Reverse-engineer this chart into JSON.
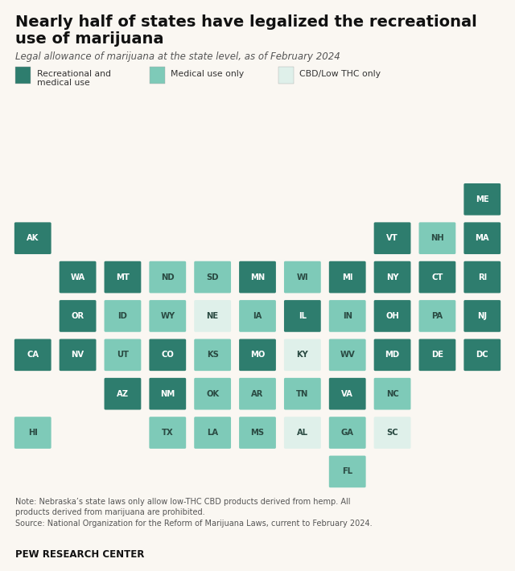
{
  "title_line1": "Nearly half of states have legalized the recreational",
  "title_line2": "use of marijuana",
  "subtitle": "Legal allowance of marijuana at the state level, as of February 2024",
  "legend": [
    {
      "label": "Recreational and\nmedical use",
      "color": "#2e7d6e"
    },
    {
      "label": "Medical use only",
      "color": "#7ecab8"
    },
    {
      "label": "CBD/Low THC only",
      "color": "#dff0ea"
    }
  ],
  "note": "Note: Nebraska’s state laws only allow low-THC CBD products derived from hemp. All\nproducts derived from marijuana are prohibited.\nSource: National Organization for the Reform of Marijuana Laws, current to February 2024.",
  "footer": "PEW RESEARCH CENTER",
  "colors": {
    "recreational": "#2e7d6e",
    "medical": "#7ecab8",
    "cbd": "#dff0ea",
    "none": "#ffffff"
  },
  "states": [
    {
      "abbr": "ME",
      "col": 10,
      "row": 0,
      "type": "recreational"
    },
    {
      "abbr": "AK",
      "col": 0,
      "row": 1,
      "type": "recreational"
    },
    {
      "abbr": "VT",
      "col": 8,
      "row": 1,
      "type": "recreational"
    },
    {
      "abbr": "NH",
      "col": 9,
      "row": 1,
      "type": "medical"
    },
    {
      "abbr": "MA",
      "col": 10,
      "row": 1,
      "type": "recreational"
    },
    {
      "abbr": "WA",
      "col": 1,
      "row": 2,
      "type": "recreational"
    },
    {
      "abbr": "MT",
      "col": 2,
      "row": 2,
      "type": "recreational"
    },
    {
      "abbr": "ND",
      "col": 3,
      "row": 2,
      "type": "medical"
    },
    {
      "abbr": "SD",
      "col": 4,
      "row": 2,
      "type": "medical"
    },
    {
      "abbr": "MN",
      "col": 5,
      "row": 2,
      "type": "recreational"
    },
    {
      "abbr": "WI",
      "col": 6,
      "row": 2,
      "type": "medical"
    },
    {
      "abbr": "MI",
      "col": 7,
      "row": 2,
      "type": "recreational"
    },
    {
      "abbr": "NY",
      "col": 8,
      "row": 2,
      "type": "recreational"
    },
    {
      "abbr": "CT",
      "col": 9,
      "row": 2,
      "type": "recreational"
    },
    {
      "abbr": "RI",
      "col": 10,
      "row": 2,
      "type": "recreational"
    },
    {
      "abbr": "OR",
      "col": 1,
      "row": 3,
      "type": "recreational"
    },
    {
      "abbr": "ID",
      "col": 2,
      "row": 3,
      "type": "medical"
    },
    {
      "abbr": "WY",
      "col": 3,
      "row": 3,
      "type": "medical"
    },
    {
      "abbr": "NE",
      "col": 4,
      "row": 3,
      "type": "cbd"
    },
    {
      "abbr": "IA",
      "col": 5,
      "row": 3,
      "type": "medical"
    },
    {
      "abbr": "IL",
      "col": 6,
      "row": 3,
      "type": "recreational"
    },
    {
      "abbr": "IN",
      "col": 7,
      "row": 3,
      "type": "medical"
    },
    {
      "abbr": "OH",
      "col": 8,
      "row": 3,
      "type": "recreational"
    },
    {
      "abbr": "PA",
      "col": 9,
      "row": 3,
      "type": "medical"
    },
    {
      "abbr": "NJ",
      "col": 10,
      "row": 3,
      "type": "recreational"
    },
    {
      "abbr": "CA",
      "col": 0,
      "row": 4,
      "type": "recreational"
    },
    {
      "abbr": "NV",
      "col": 1,
      "row": 4,
      "type": "recreational"
    },
    {
      "abbr": "UT",
      "col": 2,
      "row": 4,
      "type": "medical"
    },
    {
      "abbr": "CO",
      "col": 3,
      "row": 4,
      "type": "recreational"
    },
    {
      "abbr": "KS",
      "col": 4,
      "row": 4,
      "type": "medical"
    },
    {
      "abbr": "MO",
      "col": 5,
      "row": 4,
      "type": "recreational"
    },
    {
      "abbr": "KY",
      "col": 6,
      "row": 4,
      "type": "cbd"
    },
    {
      "abbr": "WV",
      "col": 7,
      "row": 4,
      "type": "medical"
    },
    {
      "abbr": "MD",
      "col": 8,
      "row": 4,
      "type": "recreational"
    },
    {
      "abbr": "DE",
      "col": 9,
      "row": 4,
      "type": "recreational"
    },
    {
      "abbr": "DC",
      "col": 10,
      "row": 4,
      "type": "recreational"
    },
    {
      "abbr": "AZ",
      "col": 2,
      "row": 5,
      "type": "recreational"
    },
    {
      "abbr": "NM",
      "col": 3,
      "row": 5,
      "type": "recreational"
    },
    {
      "abbr": "OK",
      "col": 4,
      "row": 5,
      "type": "medical"
    },
    {
      "abbr": "AR",
      "col": 5,
      "row": 5,
      "type": "medical"
    },
    {
      "abbr": "TN",
      "col": 6,
      "row": 5,
      "type": "medical"
    },
    {
      "abbr": "VA",
      "col": 7,
      "row": 5,
      "type": "recreational"
    },
    {
      "abbr": "NC",
      "col": 8,
      "row": 5,
      "type": "medical"
    },
    {
      "abbr": "HI",
      "col": 0,
      "row": 6,
      "type": "medical"
    },
    {
      "abbr": "TX",
      "col": 3,
      "row": 6,
      "type": "medical"
    },
    {
      "abbr": "LA",
      "col": 4,
      "row": 6,
      "type": "medical"
    },
    {
      "abbr": "MS",
      "col": 5,
      "row": 6,
      "type": "medical"
    },
    {
      "abbr": "AL",
      "col": 6,
      "row": 6,
      "type": "cbd"
    },
    {
      "abbr": "GA",
      "col": 7,
      "row": 6,
      "type": "medical"
    },
    {
      "abbr": "SC",
      "col": 8,
      "row": 6,
      "type": "cbd"
    },
    {
      "abbr": "FL",
      "col": 7,
      "row": 7,
      "type": "medical"
    }
  ],
  "background_color": "#faf7f2",
  "grid_rows": 8,
  "grid_cols": 11
}
